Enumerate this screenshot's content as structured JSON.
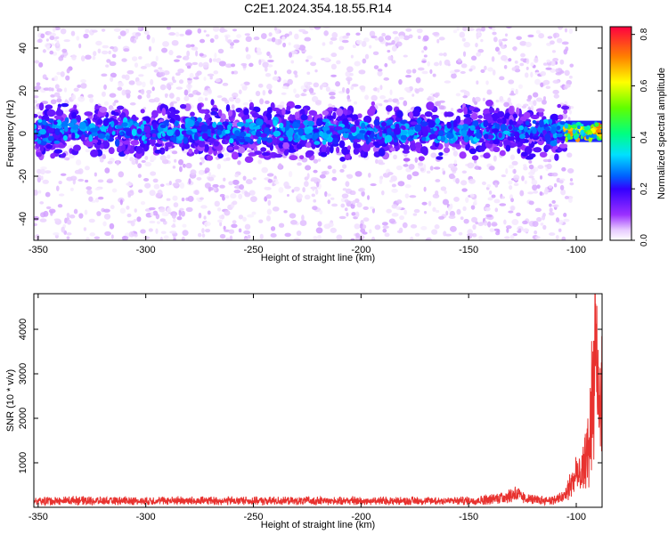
{
  "title": "C2E1.2024.354.18.55.R14",
  "chart_data": [
    {
      "type": "heatmap",
      "xlabel": "Height of straight line (km)",
      "ylabel": "Frequency (Hz)",
      "xlim": [
        -352,
        -88
      ],
      "ylim": [
        -50,
        50
      ],
      "x_ticks": [
        -350,
        -300,
        -250,
        -200,
        -150,
        -100
      ],
      "y_ticks": [
        -40,
        -20,
        0,
        20,
        40
      ],
      "grid": false,
      "colorbar": {
        "label": "Normalized spectral amplitude",
        "range": [
          0.0,
          0.83
        ],
        "ticks": [
          0.0,
          0.2,
          0.4,
          0.6,
          0.8
        ],
        "colormap": "rainbow (white-violet-blue-cyan-green-yellow-red)"
      },
      "band": {
        "center_frequency": 1,
        "core_half_width": 6,
        "outer_half_width": 14,
        "bright_patch_x": [
          -105,
          -88
        ],
        "bright_patch_peak_amplitude": 0.75,
        "typical_band_amplitude": 0.15,
        "noise_amplitude": 0.03
      }
    },
    {
      "type": "line",
      "xlabel": "Height of straight line (km)",
      "ylabel": "SNR (10 * v/v)",
      "xlim": [
        -352,
        -88
      ],
      "ylim": [
        0,
        4800
      ],
      "x_ticks": [
        -350,
        -300,
        -250,
        -200,
        -150,
        -100
      ],
      "y_ticks": [
        1000,
        2000,
        3000,
        4000
      ],
      "grid": false,
      "color": "#e8322f",
      "series": [
        {
          "x": [
            -352,
            -345,
            -340,
            -335,
            -330,
            -325,
            -320,
            -315,
            -310,
            -305,
            -300,
            -295,
            -290,
            -285,
            -280,
            -275,
            -270,
            -265,
            -260,
            -255,
            -250,
            -245,
            -240,
            -235,
            -230,
            -225,
            -220,
            -215,
            -210,
            -205,
            -200,
            -195,
            -190,
            -185,
            -180,
            -175,
            -170,
            -165,
            -160,
            -155,
            -150,
            -145,
            -140,
            -135,
            -130,
            -128,
            -126,
            -124,
            -120,
            -115,
            -110,
            -106,
            -104,
            -102,
            -100,
            -98,
            -96,
            -95,
            -94,
            -93,
            -92,
            -91.5,
            -91,
            -90.5,
            -90,
            -89,
            -88
          ],
          "y": [
            150,
            170,
            160,
            180,
            175,
            170,
            165,
            160,
            170,
            165,
            160,
            170,
            165,
            175,
            170,
            165,
            170,
            160,
            175,
            170,
            165,
            160,
            170,
            165,
            160,
            170,
            165,
            160,
            165,
            170,
            160,
            165,
            170,
            160,
            165,
            170,
            160,
            165,
            170,
            165,
            170,
            180,
            200,
            260,
            320,
            380,
            280,
            220,
            200,
            180,
            190,
            260,
            420,
            650,
            900,
            700,
            1100,
            1500,
            1300,
            2600,
            3000,
            4000,
            4800,
            3600,
            2800,
            2400,
            2900
          ]
        }
      ]
    }
  ]
}
